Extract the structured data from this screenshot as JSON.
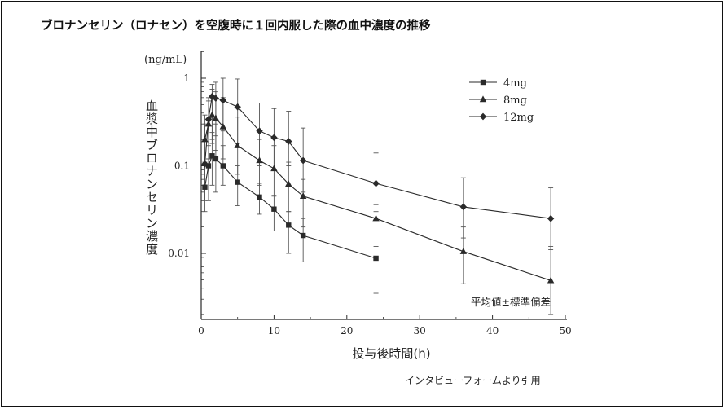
{
  "header": {
    "title": "ブロナンセリン（ロナセン）を空腹時に１回内服した際の血中濃度の推移"
  },
  "footer": {
    "source": "インタビューフォームより引用"
  },
  "chart_data": {
    "type": "line",
    "title": "ブロナンセリン（ロナセン）を空腹時に１回内服した際の血中濃度の推移",
    "xlabel": "投与後時間(h)",
    "ylabel": "血漿中ブロナンセリン濃度",
    "yunit": "(ng/mL)",
    "y_scale": "log",
    "xlim": [
      0,
      50
    ],
    "ylim": [
      0.002,
      1.3
    ],
    "x_ticks": [
      "0",
      "10",
      "20",
      "30",
      "40",
      "50"
    ],
    "y_ticks": [
      "1",
      "0.1",
      "0.01"
    ],
    "grid": false,
    "legend_position": "top-right",
    "annotation": "平均値±標準偏差",
    "series": [
      {
        "name": "4mg",
        "marker": "square",
        "x": [
          0.5,
          1,
          1.5,
          2,
          3,
          5,
          8,
          10,
          12,
          14,
          24
        ],
        "y": [
          0.057,
          0.1,
          0.13,
          0.12,
          0.1,
          0.065,
          0.044,
          0.032,
          0.021,
          0.016,
          0.0088
        ],
        "y_lower": [
          0.03,
          0.04,
          0.06,
          0.05,
          0.06,
          0.035,
          0.028,
          0.018,
          0.01,
          0.008,
          0.0035
        ],
        "y_upper": [
          0.11,
          0.17,
          0.24,
          0.3,
          0.17,
          0.1,
          0.063,
          0.046,
          0.03,
          0.025,
          0.024
        ]
      },
      {
        "name": "8mg",
        "marker": "triangle",
        "x": [
          0.5,
          1,
          1.5,
          2,
          3,
          5,
          8,
          10,
          12,
          14,
          24,
          36,
          48
        ],
        "y": [
          0.2,
          0.3,
          0.38,
          0.35,
          0.28,
          0.17,
          0.115,
          0.093,
          0.062,
          0.045,
          0.025,
          0.0105,
          0.0049
        ],
        "y_lower": [
          0.06,
          0.12,
          0.18,
          0.15,
          0.12,
          0.08,
          0.06,
          0.045,
          0.03,
          0.02,
          0.012,
          0.0045,
          0.002
        ],
        "y_upper": [
          0.38,
          0.55,
          0.75,
          0.7,
          0.6,
          0.36,
          0.2,
          0.17,
          0.11,
          0.07,
          0.036,
          0.02,
          0.012
        ]
      },
      {
        "name": "12mg",
        "marker": "diamond",
        "x": [
          0.5,
          1,
          1.5,
          2,
          3,
          5,
          8,
          10,
          12,
          14,
          24,
          36,
          48
        ],
        "y": [
          0.105,
          0.34,
          0.62,
          0.59,
          0.56,
          0.47,
          0.25,
          0.21,
          0.19,
          0.115,
          0.063,
          0.034,
          0.025
        ],
        "y_lower": [
          0.04,
          0.12,
          0.2,
          0.22,
          0.25,
          0.18,
          0.1,
          0.09,
          0.1,
          0.05,
          0.03,
          0.015,
          0.011
        ],
        "y_upper": [
          0.3,
          0.6,
          0.85,
          0.9,
          1.0,
          0.98,
          0.52,
          0.45,
          0.42,
          0.27,
          0.14,
          0.073,
          0.056
        ]
      }
    ]
  },
  "colors": {
    "line": "#2a2a2a",
    "text": "#222222",
    "border": "#111111"
  }
}
